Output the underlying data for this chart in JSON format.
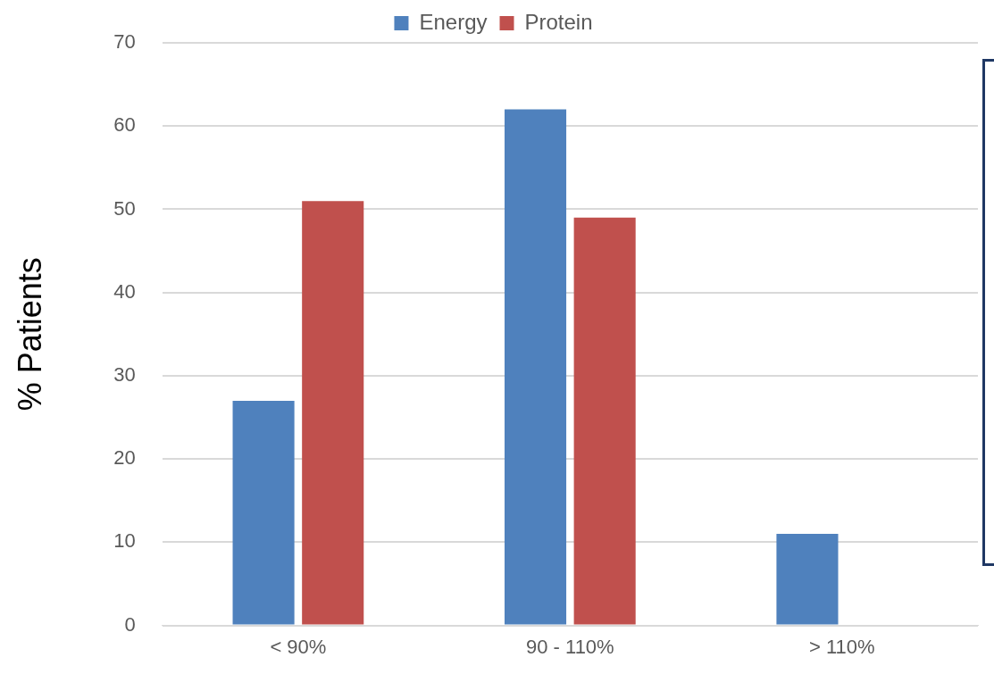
{
  "chart_data": {
    "type": "bar",
    "ylabel": "% Patients",
    "categories": [
      "< 90%",
      "90 - 110%",
      "> 110%"
    ],
    "series": [
      {
        "name": "Energy",
        "color": "#4f81bd",
        "values": [
          27,
          62,
          11
        ]
      },
      {
        "name": "Protein",
        "color": "#c0504d",
        "values": [
          51,
          49,
          0
        ]
      }
    ],
    "ylim": [
      0,
      70
    ],
    "yticks": [
      0,
      10,
      20,
      30,
      40,
      50,
      60,
      70
    ],
    "grid": "y",
    "legend": "top"
  }
}
